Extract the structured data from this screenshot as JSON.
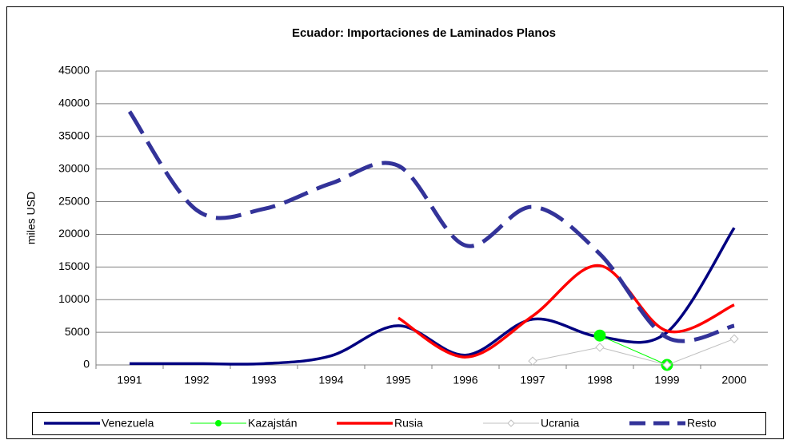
{
  "chart_data": {
    "type": "line",
    "title": "Ecuador:  Importaciones de Laminados Planos",
    "y_label": "miles USD",
    "categories": [
      "1991",
      "1992",
      "1993",
      "1994",
      "1995",
      "1996",
      "1997",
      "1998",
      "1999",
      "2000"
    ],
    "ylim": [
      0,
      45000
    ],
    "yticks": [
      0,
      5000,
      10000,
      15000,
      20000,
      25000,
      30000,
      35000,
      40000,
      45000
    ],
    "grid": true,
    "legend": "bottom",
    "series": [
      {
        "name": "Venezuela",
        "color": "#000080",
        "values": [
          200,
          200,
          200,
          1400,
          6000,
          1500,
          7000,
          4300,
          5000,
          21000
        ]
      },
      {
        "name": "Kazajstán",
        "color": "#00ff00",
        "values": [
          null,
          null,
          null,
          null,
          null,
          null,
          null,
          4500,
          0,
          null
        ]
      },
      {
        "name": "Rusia",
        "color": "#ff0000",
        "values": [
          null,
          null,
          null,
          null,
          7200,
          1200,
          7500,
          15200,
          5200,
          9200
        ]
      },
      {
        "name": "Ucrania",
        "color": "#c0c0c0",
        "values": [
          null,
          null,
          null,
          null,
          null,
          null,
          600,
          2700,
          0,
          4000
        ]
      },
      {
        "name": "Resto",
        "color": "#333399",
        "values": [
          38800,
          23700,
          23900,
          27800,
          30500,
          18300,
          24200,
          17000,
          4200,
          6000
        ]
      }
    ]
  }
}
